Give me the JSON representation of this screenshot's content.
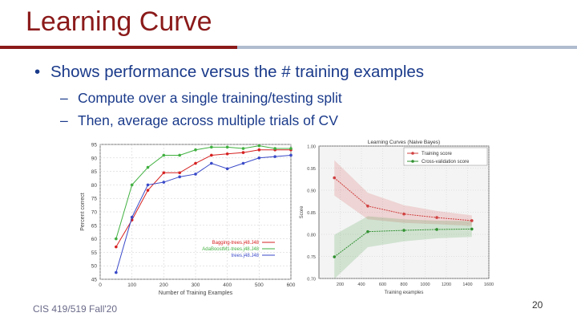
{
  "slide": {
    "title": "Learning Curve",
    "bullet": "Shows performance versus the # training examples",
    "subbullets": [
      "Compute over a single training/testing split",
      "Then, average across multiple trials of CV"
    ],
    "footer": "CIS 419/519 Fall'20",
    "page_number": "20"
  },
  "colors": {
    "title": "#8b1a1a",
    "text": "#1a3a8a"
  },
  "chart_data": [
    {
      "type": "line",
      "title": "",
      "xlabel": "Number of Training Examples",
      "ylabel": "Percent correct",
      "xlim": [
        0,
        600
      ],
      "ylim": [
        45,
        95
      ],
      "xticks": [
        0,
        100,
        200,
        300,
        400,
        500,
        600
      ],
      "yticks": [
        45,
        50,
        55,
        60,
        65,
        70,
        75,
        80,
        85,
        90,
        95
      ],
      "grid": true,
      "legend": "bottom-right",
      "x": [
        50,
        100,
        150,
        200,
        250,
        300,
        350,
        400,
        450,
        500,
        550,
        600
      ],
      "series": [
        {
          "name": "Bagging-trees.j48.J48",
          "color": "#d62020",
          "values": [
            57,
            67,
            78,
            84.5,
            84.5,
            88,
            91,
            91.5,
            92,
            93,
            93,
            93
          ]
        },
        {
          "name": "AdaBoostM1-trees.j48.J48",
          "color": "#40b040",
          "values": [
            60,
            80,
            86.5,
            91,
            91,
            93,
            94,
            94,
            93.5,
            94.5,
            93.5,
            93.5
          ]
        },
        {
          "name": "trees.j48.J48",
          "color": "#3a4ac8",
          "values": [
            47.5,
            68,
            80,
            81,
            83,
            84,
            88,
            86,
            88,
            90,
            90.5,
            91
          ]
        }
      ]
    },
    {
      "type": "line",
      "title": "Learning Curves (Naive Bayes)",
      "xlabel": "Training examples",
      "ylabel": "Score",
      "xlim": [
        0,
        1600
      ],
      "ylim": [
        0.7,
        1.0
      ],
      "xticks": [
        200,
        400,
        600,
        800,
        1000,
        1200,
        1400,
        1600
      ],
      "yticks": [
        0.7,
        0.75,
        0.8,
        0.85,
        0.9,
        0.95,
        1.0
      ],
      "grid": true,
      "legend": "top-right",
      "x": [
        145,
        460,
        800,
        1110,
        1440
      ],
      "series": [
        {
          "name": "Training score",
          "color": "#d04040",
          "values": [
            0.928,
            0.864,
            0.846,
            0.838,
            0.831
          ],
          "band": [
            0.04,
            0.03,
            0.02,
            0.015,
            0.012
          ]
        },
        {
          "name": "Cross-validation score",
          "color": "#309030",
          "values": [
            0.749,
            0.806,
            0.809,
            0.811,
            0.812
          ],
          "band": [
            0.05,
            0.035,
            0.025,
            0.02,
            0.018
          ]
        }
      ]
    }
  ]
}
